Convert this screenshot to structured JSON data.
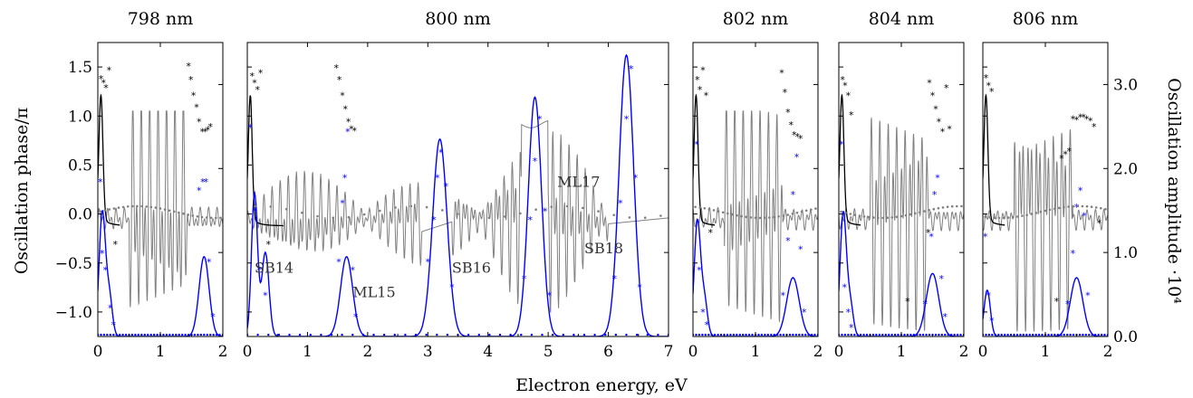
{
  "figure": {
    "xlabel": "Electron energy, eV",
    "ylabel_left": "Oscillation phase/π",
    "ylabel_right": "Oscillation amplitude ·10⁴",
    "left_ticks": [
      "1.5",
      "1.0",
      "0.5",
      "0.0",
      "−0.5",
      "−1.0"
    ],
    "right_ticks": [
      "3.0",
      "2.0",
      "1.0",
      "0.0"
    ],
    "colors": {
      "phase_line": "#000000",
      "phase_gray": "#808080",
      "amplitude": "#0000ff"
    }
  },
  "chart_data": [
    {
      "type": "line",
      "title": "798 nm",
      "xlim": [
        0,
        2
      ],
      "ylim_phase": [
        -1.25,
        1.75
      ],
      "ylim_amplitude": [
        0,
        3.5
      ],
      "x_ticks": [
        "0",
        "1",
        "2"
      ],
      "annotations": [],
      "amplitude_peaks": [
        {
          "x": 0.07,
          "height": 1.45,
          "width": 0.05
        },
        {
          "x": 0.18,
          "height": 0.5,
          "width": 0.05
        },
        {
          "x": 1.7,
          "height": 0.95,
          "width": 0.08
        }
      ],
      "amplitude_markers": [
        [
          0.04,
          1.85
        ],
        [
          0.07,
          1.0
        ],
        [
          0.12,
          0.8
        ],
        [
          0.2,
          0.35
        ],
        [
          0.25,
          0.15
        ],
        [
          1.62,
          1.75
        ],
        [
          1.68,
          1.85
        ],
        [
          1.73,
          1.85
        ],
        [
          1.78,
          0.9
        ],
        [
          1.84,
          0.25
        ]
      ],
      "phase_markers_black": [
        [
          0.05,
          1.39
        ],
        [
          0.09,
          1.35
        ],
        [
          0.13,
          1.3
        ],
        [
          0.18,
          1.48
        ],
        [
          0.28,
          -0.3
        ],
        [
          1.45,
          1.52
        ],
        [
          1.49,
          1.38
        ],
        [
          1.53,
          1.22
        ],
        [
          1.58,
          1.1
        ],
        [
          1.62,
          0.95
        ],
        [
          1.67,
          0.85
        ],
        [
          1.72,
          0.85
        ],
        [
          1.76,
          0.87
        ],
        [
          1.8,
          0.9
        ]
      ]
    },
    {
      "type": "line",
      "title": "800 nm",
      "xlim": [
        0,
        7
      ],
      "ylim_phase": [
        -1.25,
        1.75
      ],
      "ylim_amplitude": [
        0,
        3.5
      ],
      "x_ticks": [
        "0",
        "1",
        "2",
        "3",
        "4",
        "5",
        "6",
        "7"
      ],
      "annotations": [
        {
          "text": "SB14",
          "x": 0.12,
          "y": -0.6
        },
        {
          "text": "ML15",
          "x": 1.75,
          "y": -0.85
        },
        {
          "text": "SB16",
          "x": 3.4,
          "y": -0.6
        },
        {
          "text": "ML17",
          "x": 5.15,
          "y": 0.28
        },
        {
          "text": "SB18",
          "x": 5.6,
          "y": -0.4
        }
      ],
      "amplitude_peaks": [
        {
          "x": 0.12,
          "height": 1.7,
          "width": 0.05
        },
        {
          "x": 0.3,
          "height": 1.0,
          "width": 0.06
        },
        {
          "x": 1.65,
          "height": 0.95,
          "width": 0.1
        },
        {
          "x": 3.2,
          "height": 2.35,
          "width": 0.12
        },
        {
          "x": 4.78,
          "height": 2.85,
          "width": 0.11
        },
        {
          "x": 6.3,
          "height": 3.35,
          "width": 0.12
        }
      ],
      "amplitude_markers": [
        [
          0.05,
          2.5
        ],
        [
          0.12,
          1.5
        ],
        [
          0.2,
          0.8
        ],
        [
          0.3,
          0.5
        ],
        [
          1.52,
          0.9
        ],
        [
          1.58,
          1.6
        ],
        [
          1.62,
          1.9
        ],
        [
          1.67,
          2.45
        ],
        [
          1.75,
          0.8
        ],
        [
          1.8,
          0.25
        ],
        [
          3.0,
          0.9
        ],
        [
          3.1,
          1.4
        ],
        [
          3.16,
          1.9
        ],
        [
          3.22,
          2.2
        ],
        [
          3.3,
          1.8
        ],
        [
          3.4,
          0.6
        ],
        [
          4.6,
          0.7
        ],
        [
          4.7,
          1.4
        ],
        [
          4.78,
          2.1
        ],
        [
          4.86,
          2.6
        ],
        [
          4.95,
          1.5
        ],
        [
          5.02,
          0.5
        ],
        [
          6.1,
          0.7
        ],
        [
          6.2,
          1.6
        ],
        [
          6.3,
          2.6
        ],
        [
          6.38,
          3.2
        ],
        [
          6.45,
          1.9
        ],
        [
          6.52,
          0.6
        ]
      ],
      "phase_markers_black": [
        [
          0.08,
          1.42
        ],
        [
          0.12,
          1.35
        ],
        [
          0.17,
          1.28
        ],
        [
          0.22,
          1.45
        ],
        [
          0.35,
          -0.3
        ],
        [
          1.48,
          1.5
        ],
        [
          1.53,
          1.38
        ],
        [
          1.58,
          1.22
        ],
        [
          1.63,
          1.08
        ],
        [
          1.68,
          0.95
        ],
        [
          1.73,
          0.88
        ],
        [
          1.78,
          0.86
        ]
      ]
    },
    {
      "type": "line",
      "title": "802 nm",
      "xlim": [
        0,
        2
      ],
      "ylim_phase": [
        -1.25,
        1.75
      ],
      "ylim_amplitude": [
        0,
        3.5
      ],
      "x_ticks": [
        "0",
        "1",
        "2"
      ],
      "annotations": [],
      "amplitude_peaks": [
        {
          "x": 0.07,
          "height": 1.35,
          "width": 0.05
        },
        {
          "x": 0.18,
          "height": 0.45,
          "width": 0.05
        },
        {
          "x": 1.6,
          "height": 0.7,
          "width": 0.1
        }
      ],
      "amplitude_markers": [
        [
          0.06,
          2.3
        ],
        [
          0.1,
          0.8
        ],
        [
          0.16,
          0.3
        ],
        [
          0.22,
          0.15
        ],
        [
          1.44,
          0.5
        ],
        [
          1.52,
          1.15
        ],
        [
          1.6,
          1.7
        ],
        [
          1.66,
          2.15
        ],
        [
          1.72,
          1.05
        ],
        [
          1.78,
          0.3
        ]
      ],
      "phase_markers_black": [
        [
          0.07,
          1.38
        ],
        [
          0.11,
          1.28
        ],
        [
          0.16,
          1.48
        ],
        [
          0.21,
          1.22
        ],
        [
          0.28,
          -0.18
        ],
        [
          1.42,
          1.45
        ],
        [
          1.47,
          1.25
        ],
        [
          1.52,
          1.05
        ],
        [
          1.57,
          0.92
        ],
        [
          1.62,
          0.82
        ],
        [
          1.67,
          0.8
        ],
        [
          1.72,
          0.78
        ]
      ]
    },
    {
      "type": "line",
      "title": "804 nm",
      "xlim": [
        0,
        2
      ],
      "ylim_phase": [
        -1.25,
        1.75
      ],
      "ylim_amplitude": [
        0,
        3.5
      ],
      "x_ticks": [
        "0",
        "1",
        "2"
      ],
      "annotations": [],
      "amplitude_peaks": [
        {
          "x": 0.07,
          "height": 1.45,
          "width": 0.05
        },
        {
          "x": 0.18,
          "height": 0.4,
          "width": 0.05
        },
        {
          "x": 1.5,
          "height": 0.75,
          "width": 0.1
        }
      ],
      "amplitude_markers": [
        [
          0.04,
          2.3
        ],
        [
          0.09,
          0.6
        ],
        [
          0.15,
          0.3
        ],
        [
          0.2,
          0.12
        ],
        [
          1.38,
          0.4
        ],
        [
          1.48,
          1.2
        ],
        [
          1.53,
          1.7
        ],
        [
          1.58,
          1.9
        ],
        [
          1.64,
          0.7
        ],
        [
          1.7,
          0.25
        ]
      ],
      "phase_markers_black": [
        [
          0.06,
          1.38
        ],
        [
          0.1,
          1.32
        ],
        [
          0.15,
          1.22
        ],
        [
          0.2,
          1.02
        ],
        [
          1.45,
          1.35
        ],
        [
          1.5,
          1.22
        ],
        [
          1.55,
          1.08
        ],
        [
          1.6,
          0.95
        ],
        [
          1.66,
          0.85
        ],
        [
          1.72,
          1.3
        ],
        [
          1.77,
          0.88
        ],
        [
          1.1,
          -0.88
        ],
        [
          1.43,
          -0.18
        ]
      ]
    },
    {
      "type": "line",
      "title": "806 nm",
      "xlim": [
        0,
        2
      ],
      "ylim_phase": [
        -1.25,
        1.75
      ],
      "ylim_amplitude": [
        0,
        3.5
      ],
      "x_ticks": [
        "0",
        "1",
        "2"
      ],
      "annotations": [],
      "amplitude_peaks": [
        {
          "x": 0.07,
          "height": 0.55,
          "width": 0.05
        },
        {
          "x": 1.5,
          "height": 0.7,
          "width": 0.1
        }
      ],
      "amplitude_markers": [
        [
          0.04,
          1.2
        ],
        [
          0.09,
          0.5
        ],
        [
          0.14,
          0.2
        ],
        [
          1.36,
          0.4
        ],
        [
          1.44,
          1.0
        ],
        [
          1.5,
          1.55
        ],
        [
          1.56,
          1.75
        ],
        [
          1.62,
          1.45
        ],
        [
          1.68,
          0.5
        ]
      ],
      "phase_markers_black": [
        [
          0.05,
          1.4
        ],
        [
          0.09,
          1.32
        ],
        [
          0.14,
          1.26
        ],
        [
          1.18,
          -0.88
        ],
        [
          1.26,
          0.58
        ],
        [
          1.32,
          0.62
        ],
        [
          1.38,
          0.65
        ],
        [
          1.44,
          0.98
        ],
        [
          1.5,
          0.97
        ],
        [
          1.56,
          1.0
        ],
        [
          1.61,
          1.0
        ],
        [
          1.66,
          0.98
        ],
        [
          1.72,
          0.96
        ],
        [
          1.78,
          0.9
        ],
        [
          1.86,
          -0.08
        ]
      ]
    }
  ]
}
